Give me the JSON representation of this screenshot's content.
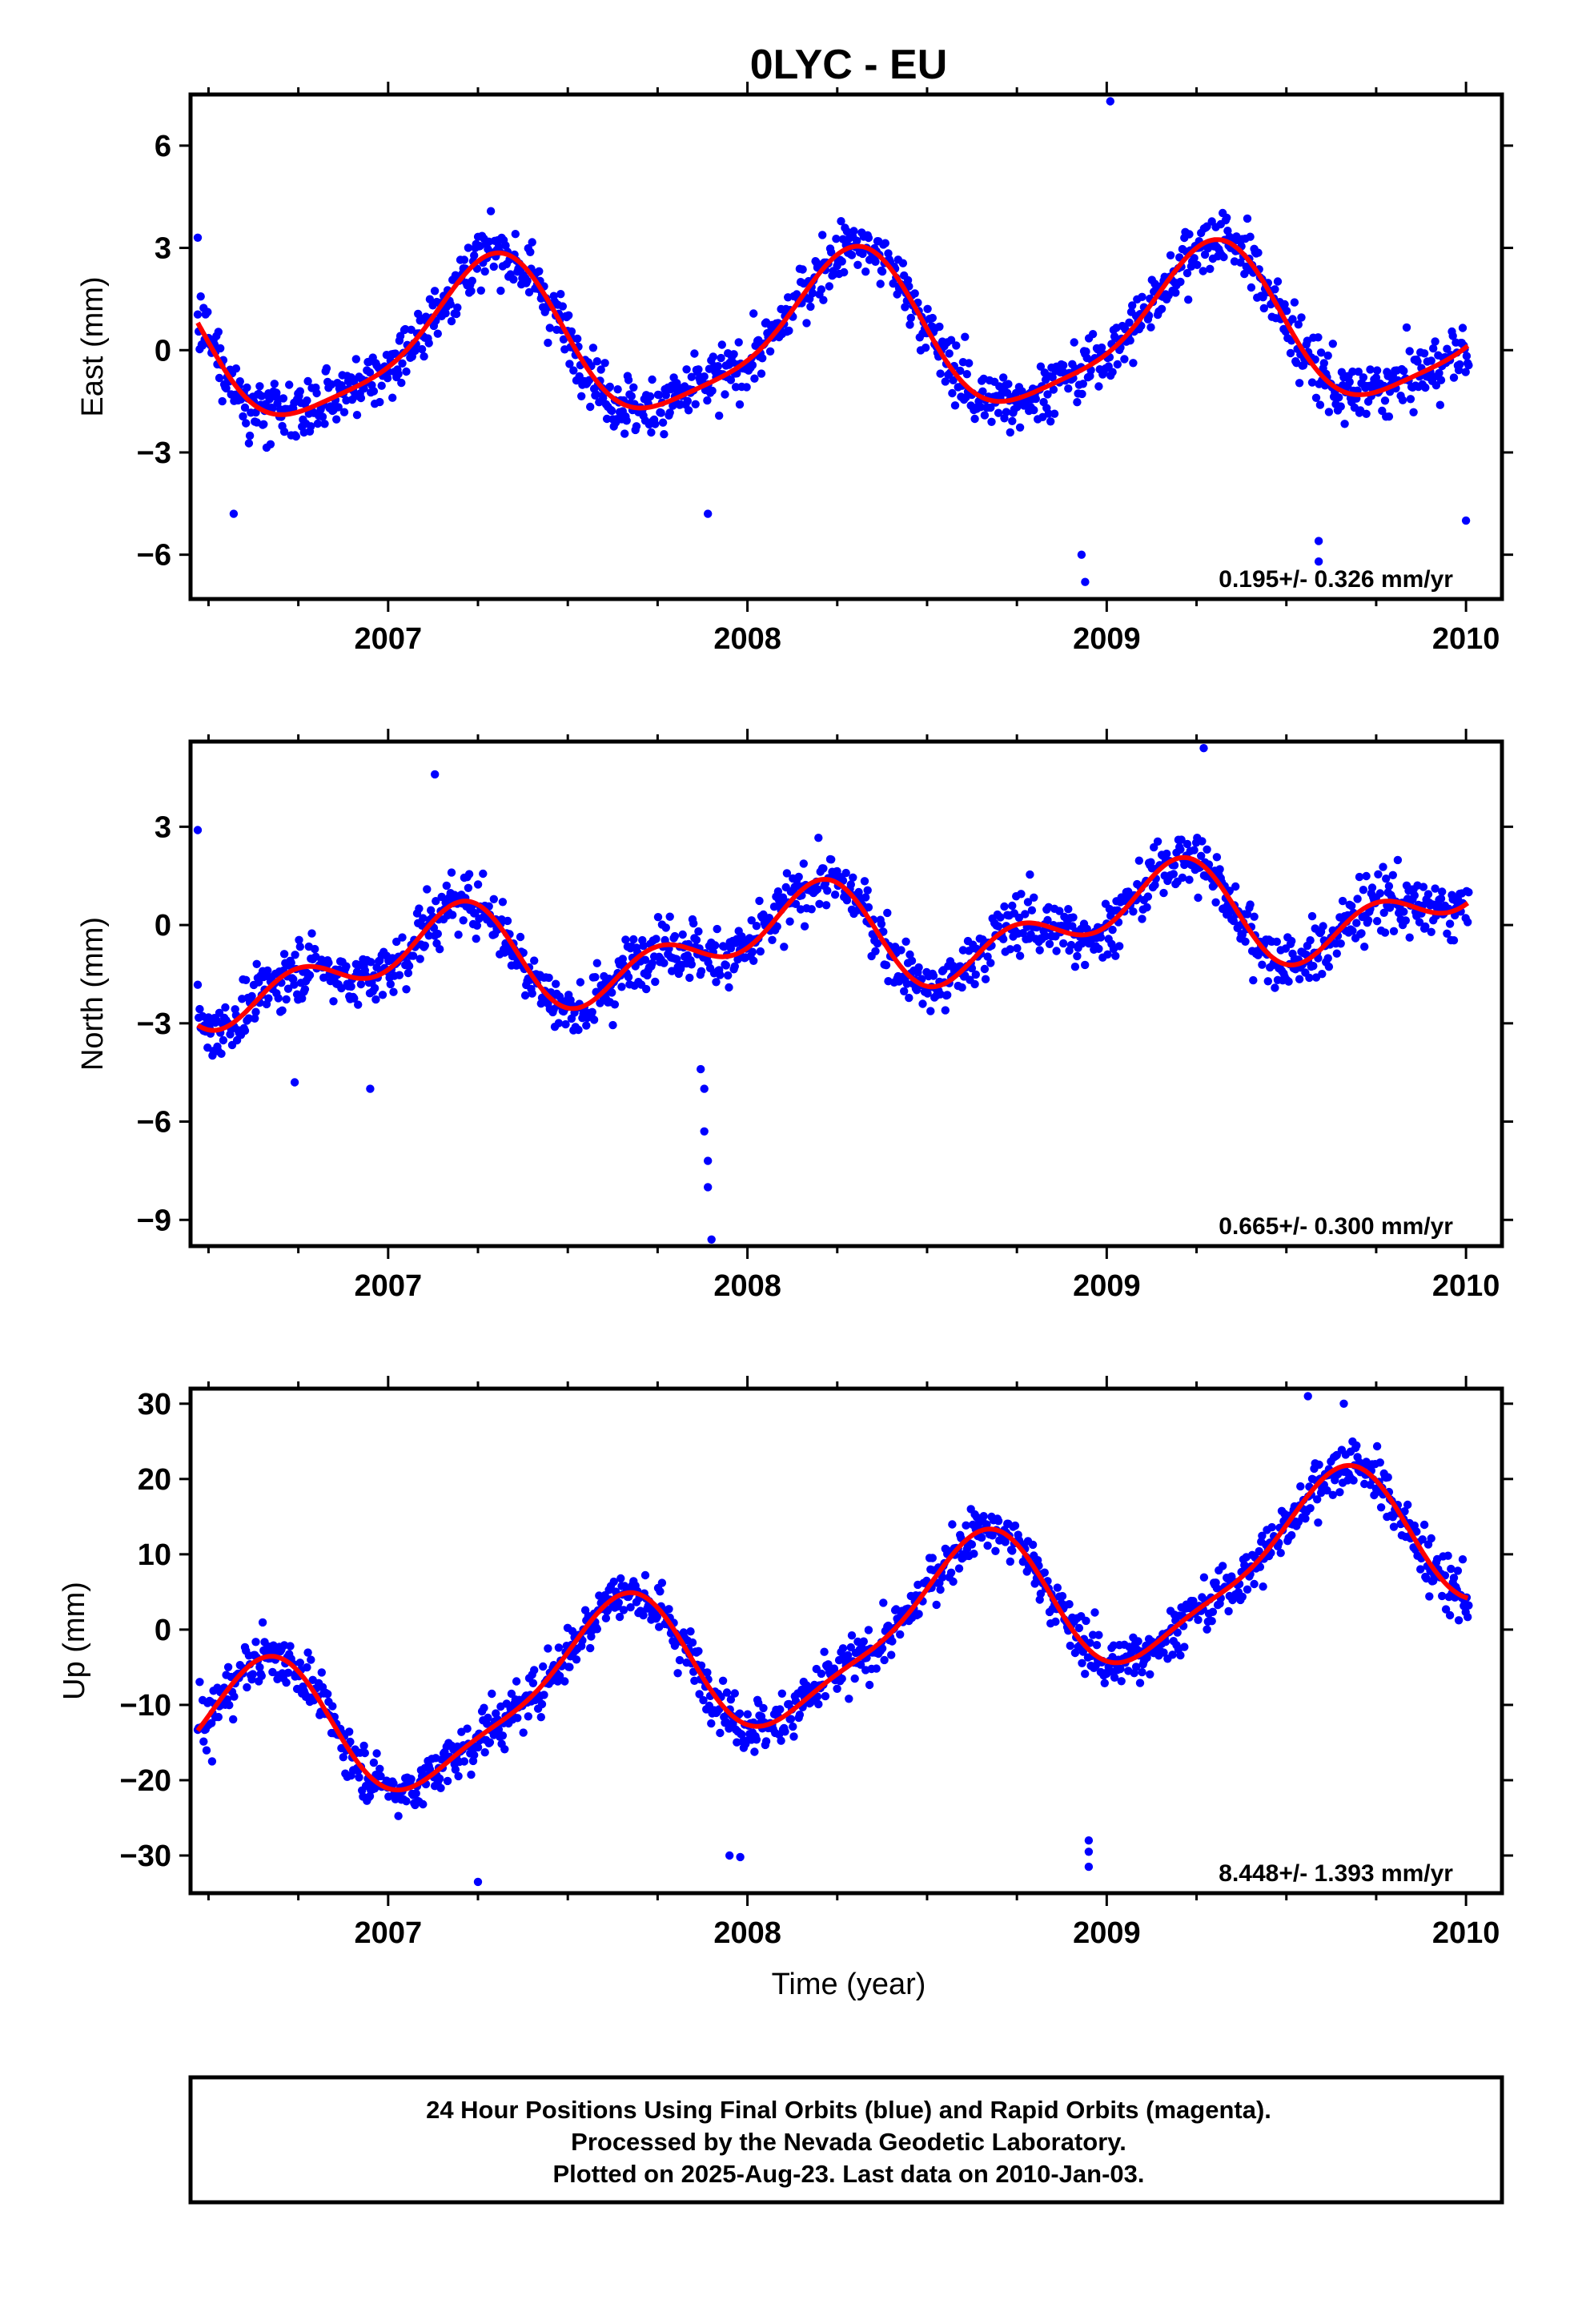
{
  "colors": {
    "points": "#0000ff",
    "fit": "#ff0000",
    "frame": "#000000"
  },
  "chart_data": {
    "title": "0LYC - EU",
    "xlabel": "Time (year)",
    "x_range": [
      2006.45,
      2010.1
    ],
    "x_ticks": [
      "2007",
      "2008",
      "2009",
      "2010"
    ],
    "panels": [
      {
        "type": "scatter",
        "ylabel": "East (mm)",
        "ylim": [
          -7.3,
          7.5
        ],
        "y_ticks": [
          "6",
          "3",
          "0",
          "−3",
          "−6"
        ],
        "rate": "0.195+/- 0.326 mm/yr",
        "model": {
          "mean": 0.4,
          "amp1": 2.2,
          "phase1": 0.28,
          "amp2": 0.5,
          "phase2": 0.21,
          "trend": 0.195,
          "noise": 1.0
        },
        "outliers": [
          [
            2006.47,
            3.3
          ],
          [
            2008.93,
            -6.0
          ],
          [
            2008.94,
            -6.8
          ],
          [
            2009.01,
            7.3
          ],
          [
            2009.59,
            -5.6
          ],
          [
            2009.59,
            -6.2
          ],
          [
            2010.0,
            -5.0
          ],
          [
            2007.89,
            -4.8
          ],
          [
            2006.57,
            -4.8
          ]
        ]
      },
      {
        "type": "scatter",
        "ylabel": "North (mm)",
        "ylim": [
          -9.8,
          5.6
        ],
        "y_ticks": [
          "3",
          "0",
          "−3",
          "−6",
          "−9"
        ],
        "rate": "0.665+/- 0.300 mm/yr",
        "model": {
          "mean": -0.4,
          "amp1": 1.1,
          "phase1": 0.13,
          "amp2": 0.9,
          "phase2": 0.11,
          "trend": 0.665,
          "noise": 1.05
        },
        "outliers": [
          [
            2007.87,
            -4.4
          ],
          [
            2007.88,
            -5.0
          ],
          [
            2007.88,
            -6.3
          ],
          [
            2007.89,
            -7.2
          ],
          [
            2007.89,
            -8.0
          ],
          [
            2007.9,
            -9.6
          ],
          [
            2007.13,
            4.6
          ],
          [
            2009.27,
            5.4
          ],
          [
            2006.47,
            2.9
          ],
          [
            2006.74,
            -4.8
          ],
          [
            2006.95,
            -5.0
          ]
        ]
      },
      {
        "type": "scatter",
        "ylabel": "Up (mm)",
        "ylim": [
          -35,
          32
        ],
        "y_ticks": [
          "30",
          "20",
          "10",
          "0",
          "−10",
          "−20",
          "−30"
        ],
        "rate": "8.448+/- 1.393 mm/yr",
        "model": {
          "mean": -1.5,
          "amp1": 9.5,
          "phase1": 0.62,
          "amp2": 2.5,
          "phase2": 0.58,
          "trend": 8.448,
          "noise": 4.0
        },
        "outliers": [
          [
            2008.95,
            -28.0
          ],
          [
            2008.95,
            -29.5
          ],
          [
            2008.95,
            -31.5
          ],
          [
            2007.98,
            -30.2
          ],
          [
            2007.95,
            -30.0
          ],
          [
            2007.25,
            -33.5
          ],
          [
            2009.56,
            31.0
          ],
          [
            2009.66,
            30.0
          ],
          [
            2006.51,
            -17.5
          ]
        ]
      }
    ]
  },
  "footer": {
    "line1": "24 Hour Positions Using Final Orbits (blue) and Rapid Orbits (magenta).",
    "line2": "Processed by the Nevada Geodetic Laboratory.",
    "line3": "Plotted on 2025-Aug-23. Last data on 2010-Jan-03."
  }
}
